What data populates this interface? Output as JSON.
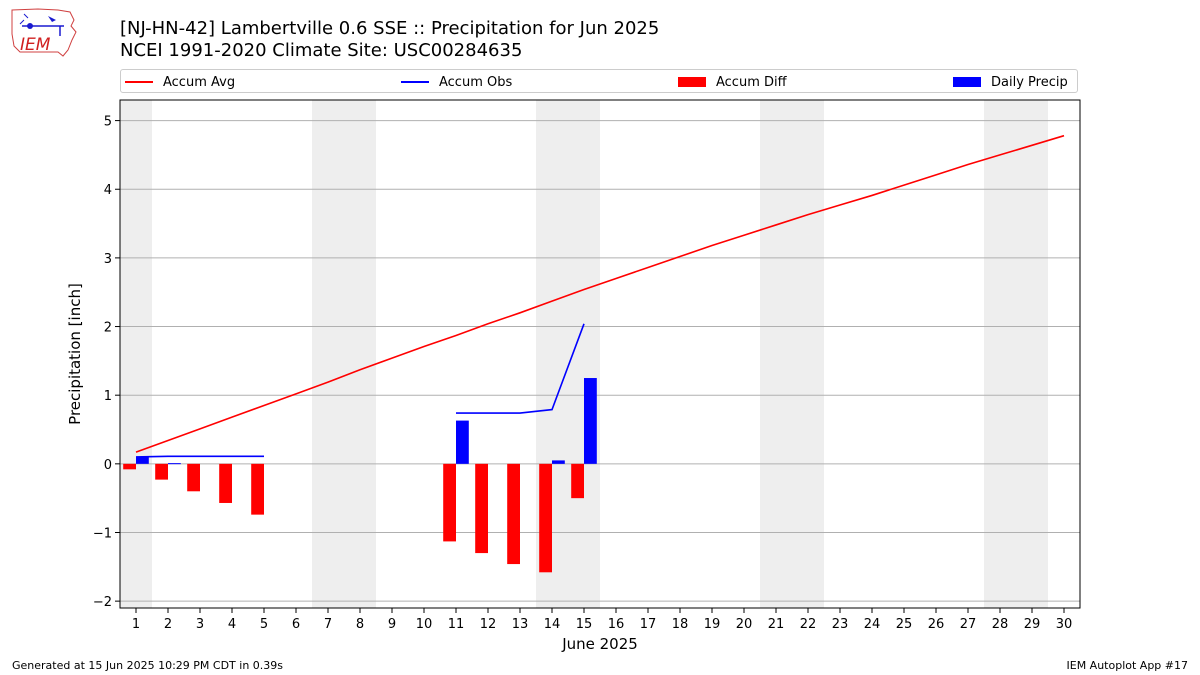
{
  "header": {
    "logo_text": "IEM",
    "title_line1": "[NJ-HN-42] Lambertville 0.6 SSE :: Precipitation for Jun 2025",
    "title_line2": "NCEI 1991-2020 Climate Site: USC00284635"
  },
  "legend": {
    "placement": "top",
    "items": [
      {
        "label": "Accum Avg",
        "kind": "line",
        "color": "#ff0000"
      },
      {
        "label": "Accum Obs",
        "kind": "line",
        "color": "#0000ff"
      },
      {
        "label": "Accum Diff",
        "kind": "bar",
        "color": "#ff0000"
      },
      {
        "label": "Daily Precip",
        "kind": "bar",
        "color": "#0000ff"
      }
    ]
  },
  "footer": {
    "left": "Generated at 15 Jun 2025 10:29 PM CDT in 0.39s",
    "right": "IEM Autoplot App #17"
  },
  "chart_data": {
    "type": "bar",
    "xlabel": "June 2025",
    "ylabel": "Precipitation [inch]",
    "xlim": [
      0.5,
      30.5
    ],
    "ylim": [
      -2.1,
      5.3
    ],
    "x_ticks": [
      1,
      2,
      3,
      4,
      5,
      6,
      7,
      8,
      9,
      10,
      11,
      12,
      13,
      14,
      15,
      16,
      17,
      18,
      19,
      20,
      21,
      22,
      23,
      24,
      25,
      26,
      27,
      28,
      29,
      30
    ],
    "y_ticks": [
      -2,
      -1,
      0,
      1,
      2,
      3,
      4,
      5
    ],
    "y_tick_labels": [
      "−2",
      "−1",
      "0",
      "1",
      "2",
      "3",
      "4",
      "5"
    ],
    "grid": "y",
    "weekend_shading": [
      [
        0.5,
        1.5
      ],
      [
        6.5,
        8.5
      ],
      [
        13.5,
        15.5
      ],
      [
        20.5,
        22.5
      ],
      [
        27.5,
        29.5
      ]
    ],
    "shading_color": "#eeeeee",
    "series": [
      {
        "name": "Accum Avg",
        "kind": "line",
        "color": "#ff0000",
        "x": [
          1,
          2,
          3,
          4,
          5,
          6,
          7,
          8,
          9,
          10,
          11,
          12,
          13,
          14,
          15,
          16,
          17,
          18,
          19,
          20,
          21,
          22,
          23,
          24,
          25,
          26,
          27,
          28,
          29,
          30
        ],
        "values": [
          0.17,
          0.34,
          0.51,
          0.68,
          0.85,
          1.02,
          1.19,
          1.37,
          1.54,
          1.71,
          1.87,
          2.04,
          2.2,
          2.37,
          2.54,
          2.7,
          2.86,
          3.02,
          3.18,
          3.33,
          3.48,
          3.63,
          3.77,
          3.91,
          4.06,
          4.21,
          4.36,
          4.5,
          4.64,
          4.78
        ]
      },
      {
        "name": "Accum Obs",
        "kind": "line",
        "color": "#0000ff",
        "segments": [
          {
            "x": [
              1,
              2,
              3,
              4,
              5
            ],
            "values": [
              0.1,
              0.11,
              0.11,
              0.11,
              0.11
            ]
          },
          {
            "x": [
              11,
              12,
              13,
              14,
              15
            ],
            "values": [
              0.74,
              0.74,
              0.74,
              0.79,
              2.04
            ]
          }
        ]
      },
      {
        "name": "Accum Diff",
        "kind": "bar",
        "color": "#ff0000",
        "x": [
          1,
          2,
          3,
          4,
          5,
          11,
          12,
          13,
          14,
          15
        ],
        "values": [
          -0.08,
          -0.23,
          -0.4,
          -0.57,
          -0.74,
          -1.13,
          -1.3,
          -1.46,
          -1.58,
          -0.5
        ]
      },
      {
        "name": "Daily Precip",
        "kind": "bar",
        "color": "#0000ff",
        "x": [
          1,
          2,
          11,
          14,
          15
        ],
        "values": [
          0.1,
          0.01,
          0.63,
          0.05,
          1.25
        ]
      }
    ]
  }
}
